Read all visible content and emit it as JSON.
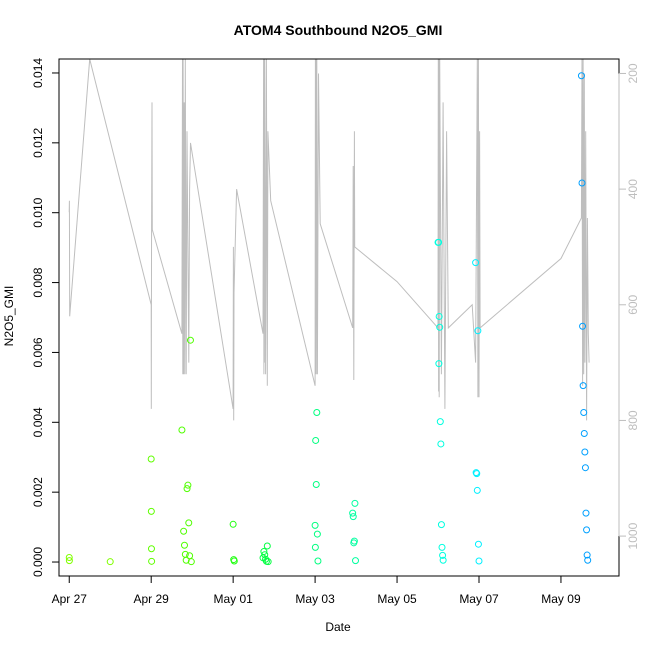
{
  "chart_data": {
    "type": "scatter",
    "title": "ATOM4 Southbound N2O5_GMI",
    "xlabel": "Date",
    "ylabel": "N2O5_GMI",
    "xlim": [
      "2017-04-26T18:00",
      "2017-05-10T10:00"
    ],
    "ylim": [
      -0.0004,
      0.0144
    ],
    "y2lim": [
      1069,
      175
    ],
    "y2_reversed": true,
    "x_ticks": [
      {
        "date": "2017-04-27",
        "label": "Apr 27"
      },
      {
        "date": "2017-04-29",
        "label": "Apr 29"
      },
      {
        "date": "2017-05-01",
        "label": "May 01"
      },
      {
        "date": "2017-05-03",
        "label": "May 03"
      },
      {
        "date": "2017-05-05",
        "label": "May 05"
      },
      {
        "date": "2017-05-07",
        "label": "May 07"
      },
      {
        "date": "2017-05-09",
        "label": "May 09"
      }
    ],
    "y_ticks": [
      {
        "value": 0.0,
        "label": "0.000"
      },
      {
        "value": 0.002,
        "label": "0.002"
      },
      {
        "value": 0.004,
        "label": "0.004"
      },
      {
        "value": 0.006,
        "label": "0.006"
      },
      {
        "value": 0.008,
        "label": "0.008"
      },
      {
        "value": 0.01,
        "label": "0.010"
      },
      {
        "value": 0.012,
        "label": "0.012"
      },
      {
        "value": 0.014,
        "label": "0.014"
      }
    ],
    "y2_ticks": [
      {
        "value": 200,
        "label": "200"
      },
      {
        "value": 400,
        "label": "400"
      },
      {
        "value": 600,
        "label": "600"
      },
      {
        "value": 800,
        "label": "800"
      },
      {
        "value": 1000,
        "label": "1000"
      }
    ],
    "line_color": "#bebebe",
    "altitude_line": [
      [
        "2017-04-27T00:00",
        440
      ],
      [
        "2017-04-27T00:05",
        420
      ],
      [
        "2017-04-27T00:15",
        620
      ],
      [
        "2017-04-27T12:00",
        175
      ],
      [
        "2017-04-29T00:00",
        600
      ],
      [
        "2017-04-29T00:05",
        780
      ],
      [
        "2017-04-29T00:10",
        520
      ],
      [
        "2017-04-29T00:30",
        250
      ],
      [
        "2017-04-29T00:40",
        470
      ],
      [
        "2017-04-29T18:00",
        650
      ],
      [
        "2017-04-29T18:20",
        175
      ],
      [
        "2017-04-29T18:30",
        720
      ],
      [
        "2017-04-29T18:40",
        175
      ],
      [
        "2017-04-29T19:00",
        720
      ],
      [
        "2017-04-29T19:20",
        250
      ],
      [
        "2017-04-29T19:40",
        720
      ],
      [
        "2017-04-29T20:00",
        175
      ],
      [
        "2017-04-29T20:30",
        720
      ],
      [
        "2017-04-29T21:00",
        300
      ],
      [
        "2017-04-29T22:00",
        700
      ],
      [
        "2017-04-29T22:30",
        400
      ],
      [
        "2017-04-29T23:00",
        320
      ],
      [
        "2017-05-01T00:00",
        780
      ],
      [
        "2017-05-01T00:10",
        500
      ],
      [
        "2017-05-01T00:20",
        800
      ],
      [
        "2017-05-01T00:30",
        580
      ],
      [
        "2017-05-01T02:00",
        400
      ],
      [
        "2017-05-01T17:30",
        650
      ],
      [
        "2017-05-01T17:50",
        175
      ],
      [
        "2017-05-01T18:00",
        720
      ],
      [
        "2017-05-01T18:10",
        175
      ],
      [
        "2017-05-01T18:20",
        700
      ],
      [
        "2017-05-01T18:30",
        175
      ],
      [
        "2017-05-01T19:00",
        720
      ],
      [
        "2017-05-01T19:30",
        175
      ],
      [
        "2017-05-01T20:00",
        740
      ],
      [
        "2017-05-01T20:20",
        300
      ],
      [
        "2017-05-01T22:00",
        420
      ],
      [
        "2017-05-03T00:00",
        740
      ],
      [
        "2017-05-03T00:10",
        175
      ],
      [
        "2017-05-03T00:20",
        720
      ],
      [
        "2017-05-03T00:30",
        175
      ],
      [
        "2017-05-03T00:40",
        720
      ],
      [
        "2017-05-03T01:00",
        175
      ],
      [
        "2017-05-03T01:20",
        720
      ],
      [
        "2017-05-03T02:00",
        200
      ],
      [
        "2017-05-03T03:00",
        460
      ],
      [
        "2017-05-03T22:00",
        640
      ],
      [
        "2017-05-03T22:20",
        360
      ],
      [
        "2017-05-03T22:40",
        730
      ],
      [
        "2017-05-03T23:00",
        300
      ],
      [
        "2017-05-03T23:10",
        500
      ],
      [
        "2017-05-05T00:00",
        560
      ],
      [
        "2017-05-06T00:00",
        640
      ],
      [
        "2017-05-06T00:10",
        175
      ],
      [
        "2017-05-06T00:20",
        750
      ],
      [
        "2017-05-06T00:30",
        175
      ],
      [
        "2017-05-06T00:40",
        760
      ],
      [
        "2017-05-06T01:00",
        175
      ],
      [
        "2017-05-06T02:00",
        720
      ],
      [
        "2017-05-06T03:00",
        250
      ],
      [
        "2017-05-06T04:00",
        780
      ],
      [
        "2017-05-06T05:00",
        300
      ],
      [
        "2017-05-06T06:00",
        640
      ],
      [
        "2017-05-06T20:00",
        600
      ],
      [
        "2017-05-06T22:00",
        700
      ],
      [
        "2017-05-06T23:00",
        175
      ],
      [
        "2017-05-06T23:20",
        760
      ],
      [
        "2017-05-06T23:40",
        175
      ],
      [
        "2017-05-07T00:00",
        760
      ],
      [
        "2017-05-07T00:20",
        300
      ],
      [
        "2017-05-07T00:40",
        640
      ],
      [
        "2017-05-09T00:00",
        520
      ],
      [
        "2017-05-09T12:00",
        450
      ],
      [
        "2017-05-09T12:20",
        175
      ],
      [
        "2017-05-09T12:40",
        740
      ],
      [
        "2017-05-09T13:00",
        175
      ],
      [
        "2017-05-09T13:20",
        720
      ],
      [
        "2017-05-09T13:40",
        200
      ],
      [
        "2017-05-09T14:00",
        700
      ],
      [
        "2017-05-09T14:30",
        300
      ],
      [
        "2017-05-09T15:00",
        800
      ],
      [
        "2017-05-09T15:30",
        450
      ],
      [
        "2017-05-09T16:00",
        650
      ],
      [
        "2017-05-09T16:30",
        700
      ]
    ],
    "series": [
      {
        "points": [
          [
            "2017-04-27T00:00",
            0.00013,
            "#80ff00"
          ],
          [
            "2017-04-27T00:05",
            4e-05,
            "#80ff00"
          ],
          [
            "2017-04-28T00:00",
            1e-05,
            "#80ff00"
          ],
          [
            "2017-04-29T00:00",
            0.00295,
            "#60ff00"
          ],
          [
            "2017-04-29T00:05",
            0.00145,
            "#60ff00"
          ],
          [
            "2017-04-29T00:10",
            0.00038,
            "#60ff00"
          ],
          [
            "2017-04-29T00:15",
            2e-05,
            "#60ff00"
          ],
          [
            "2017-04-29T18:00",
            0.00378,
            "#50ff00"
          ],
          [
            "2017-04-29T19:00",
            0.00088,
            "#50ff00"
          ],
          [
            "2017-04-29T19:30",
            0.00048,
            "#50ff00"
          ],
          [
            "2017-04-29T20:00",
            0.00022,
            "#50ff00"
          ],
          [
            "2017-04-29T20:30",
            5e-05,
            "#50ff00"
          ],
          [
            "2017-04-29T21:00",
            0.0021,
            "#50ff00"
          ],
          [
            "2017-04-29T21:30",
            0.0022,
            "#50ff00"
          ],
          [
            "2017-04-29T22:00",
            0.00112,
            "#50ff00"
          ],
          [
            "2017-04-29T22:30",
            0.00018,
            "#50ff00"
          ],
          [
            "2017-04-29T23:00",
            0.00635,
            "#50ff00"
          ],
          [
            "2017-04-29T23:30",
            1e-05,
            "#50ff00"
          ],
          [
            "2017-05-01T00:00",
            0.00108,
            "#20ff10"
          ],
          [
            "2017-05-01T00:20",
            7e-05,
            "#20ff10"
          ],
          [
            "2017-05-01T00:40",
            3e-05,
            "#20ff10"
          ],
          [
            "2017-05-01T17:30",
            0.00012,
            "#00ff40"
          ],
          [
            "2017-05-01T18:00",
            0.0003,
            "#00ff40"
          ],
          [
            "2017-05-01T18:30",
            0.00021,
            "#00ff40"
          ],
          [
            "2017-05-01T19:00",
            8e-05,
            "#00ff40"
          ],
          [
            "2017-05-01T19:30",
            2e-05,
            "#00ff40"
          ],
          [
            "2017-05-01T20:00",
            0.00046,
            "#00ff40"
          ],
          [
            "2017-05-01T20:30",
            1e-05,
            "#00ff40"
          ],
          [
            "2017-05-03T00:00",
            0.00105,
            "#00ff80"
          ],
          [
            "2017-05-03T00:10",
            0.00042,
            "#00ff80"
          ],
          [
            "2017-05-03T00:20",
            0.00348,
            "#00ff80"
          ],
          [
            "2017-05-03T00:40",
            0.00222,
            "#00ff80"
          ],
          [
            "2017-05-03T01:00",
            0.00428,
            "#00ff80"
          ],
          [
            "2017-05-03T01:20",
            0.0008,
            "#00ff80"
          ],
          [
            "2017-05-03T01:40",
            3e-05,
            "#00ff80"
          ],
          [
            "2017-05-03T22:00",
            0.0014,
            "#00ffa0"
          ],
          [
            "2017-05-03T22:20",
            0.0013,
            "#00ffa0"
          ],
          [
            "2017-05-03T22:40",
            0.00055,
            "#00ffa0"
          ],
          [
            "2017-05-03T23:00",
            0.0006,
            "#00ffa0"
          ],
          [
            "2017-05-03T23:20",
            0.00168,
            "#00ffa0"
          ],
          [
            "2017-05-03T23:40",
            4e-05,
            "#00ffa0"
          ],
          [
            "2017-05-06T00:00",
            0.00915,
            "#00ffe0"
          ],
          [
            "2017-05-06T00:20",
            0.00915,
            "#00ffe0"
          ],
          [
            "2017-05-06T00:30",
            0.00568,
            "#00ffe0"
          ],
          [
            "2017-05-06T00:40",
            0.00703,
            "#00ffe0"
          ],
          [
            "2017-05-06T01:00",
            0.00672,
            "#00ffe0"
          ],
          [
            "2017-05-06T01:20",
            0.00402,
            "#00ffe0"
          ],
          [
            "2017-05-06T01:40",
            0.00338,
            "#00ffe0"
          ],
          [
            "2017-05-06T02:00",
            0.00107,
            "#00ffe0"
          ],
          [
            "2017-05-06T02:20",
            0.00042,
            "#00ffe0"
          ],
          [
            "2017-05-06T02:40",
            0.00019,
            "#00ffe0"
          ],
          [
            "2017-05-06T03:00",
            5e-05,
            "#00ffe0"
          ],
          [
            "2017-05-06T22:00",
            0.00857,
            "#00f0ff"
          ],
          [
            "2017-05-06T22:20",
            0.00256,
            "#00f0ff"
          ],
          [
            "2017-05-06T22:40",
            0.00253,
            "#00f0ff"
          ],
          [
            "2017-05-06T23:00",
            0.00205,
            "#00f0ff"
          ],
          [
            "2017-05-06T23:20",
            0.00662,
            "#00f0ff"
          ],
          [
            "2017-05-06T23:40",
            0.00051,
            "#00f0ff"
          ],
          [
            "2017-05-07T00:00",
            3e-05,
            "#00f0ff"
          ],
          [
            "2017-05-09T12:00",
            0.01392,
            "#00a0ff"
          ],
          [
            "2017-05-09T12:20",
            0.01085,
            "#00a0ff"
          ],
          [
            "2017-05-09T12:40",
            0.00675,
            "#00a0ff"
          ],
          [
            "2017-05-09T13:00",
            0.00505,
            "#00a0ff"
          ],
          [
            "2017-05-09T13:20",
            0.00428,
            "#00a0ff"
          ],
          [
            "2017-05-09T13:40",
            0.00368,
            "#00a0ff"
          ],
          [
            "2017-05-09T14:00",
            0.00315,
            "#00a0ff"
          ],
          [
            "2017-05-09T14:20",
            0.0027,
            "#00a0ff"
          ],
          [
            "2017-05-09T14:40",
            0.0014,
            "#00a0ff"
          ],
          [
            "2017-05-09T15:00",
            0.00092,
            "#00a0ff"
          ],
          [
            "2017-05-09T15:20",
            0.0002,
            "#00a0ff"
          ],
          [
            "2017-05-09T15:40",
            5e-05,
            "#00a0ff"
          ]
        ]
      }
    ],
    "grid": false,
    "legend": "none"
  }
}
